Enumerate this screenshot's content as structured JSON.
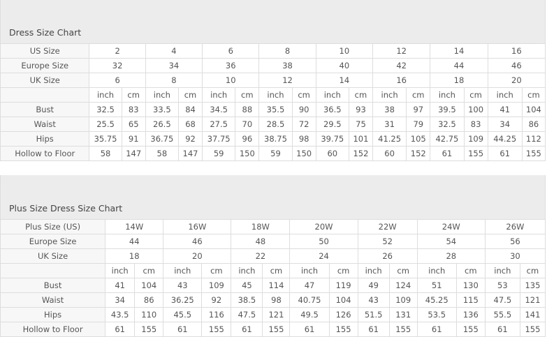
{
  "charts": [
    {
      "title": "Dress Size Chart",
      "head_rows": [
        {
          "label": "US Size",
          "values": [
            "2",
            "4",
            "6",
            "8",
            "10",
            "12",
            "14",
            "16"
          ]
        },
        {
          "label": "Europe Size",
          "values": [
            "32",
            "34",
            "36",
            "38",
            "40",
            "42",
            "44",
            "46"
          ]
        },
        {
          "label": "UK Size",
          "values": [
            "6",
            "8",
            "10",
            "12",
            "14",
            "16",
            "18",
            "20"
          ]
        }
      ],
      "units": [
        "inch",
        "cm"
      ],
      "measure_rows": [
        {
          "label": "Bust",
          "values": [
            "32.5",
            "83",
            "33.5",
            "84",
            "34.5",
            "88",
            "35.5",
            "90",
            "36.5",
            "93",
            "38",
            "97",
            "39.5",
            "100",
            "41",
            "104"
          ]
        },
        {
          "label": "Waist",
          "values": [
            "25.5",
            "65",
            "26.5",
            "68",
            "27.5",
            "70",
            "28.5",
            "72",
            "29.5",
            "75",
            "31",
            "79",
            "32.5",
            "83",
            "34",
            "86"
          ]
        },
        {
          "label": "Hips",
          "values": [
            "35.75",
            "91",
            "36.75",
            "92",
            "37.75",
            "96",
            "38.75",
            "98",
            "39.75",
            "101",
            "41.25",
            "105",
            "42.75",
            "109",
            "44.25",
            "112"
          ]
        },
        {
          "label": "Hollow to Floor",
          "values": [
            "58",
            "147",
            "58",
            "147",
            "59",
            "150",
            "59",
            "150",
            "60",
            "152",
            "60",
            "152",
            "61",
            "155",
            "61",
            "155"
          ]
        }
      ]
    },
    {
      "title": "Plus Size Dress Size Chart",
      "head_rows": [
        {
          "label": "Plus Size (US)",
          "values": [
            "14W",
            "16W",
            "18W",
            "20W",
            "22W",
            "24W",
            "26W"
          ]
        },
        {
          "label": "Europe Size",
          "values": [
            "44",
            "46",
            "48",
            "50",
            "52",
            "54",
            "56"
          ]
        },
        {
          "label": "UK Size",
          "values": [
            "18",
            "20",
            "22",
            "24",
            "26",
            "28",
            "30"
          ]
        }
      ],
      "units": [
        "inch",
        "cm"
      ],
      "measure_rows": [
        {
          "label": "Bust",
          "values": [
            "41",
            "104",
            "43",
            "109",
            "45",
            "114",
            "47",
            "119",
            "49",
            "124",
            "51",
            "130",
            "53",
            "135"
          ]
        },
        {
          "label": "Waist",
          "values": [
            "34",
            "86",
            "36.25",
            "92",
            "38.5",
            "98",
            "40.75",
            "104",
            "43",
            "109",
            "45.25",
            "115",
            "47.5",
            "121"
          ]
        },
        {
          "label": "Hips",
          "values": [
            "43.5",
            "110",
            "45.5",
            "116",
            "47.5",
            "121",
            "49.5",
            "126",
            "51.5",
            "131",
            "53.5",
            "136",
            "55.5",
            "141"
          ]
        },
        {
          "label": "Hollow to Floor",
          "values": [
            "61",
            "155",
            "61",
            "155",
            "61",
            "155",
            "61",
            "155",
            "61",
            "155",
            "61",
            "155",
            "61",
            "155"
          ]
        }
      ]
    }
  ]
}
